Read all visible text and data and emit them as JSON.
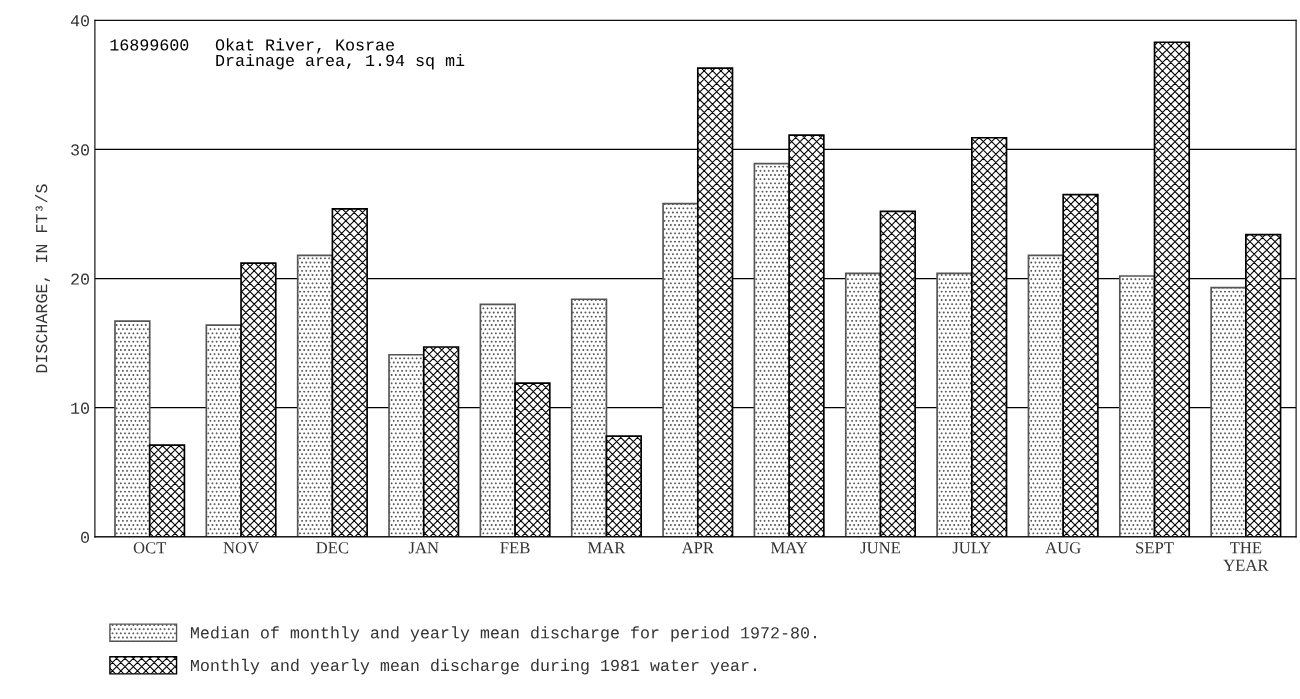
{
  "chart_data": {
    "type": "bar",
    "ylabel": "DISCHARGE, IN FT³/S",
    "categories": [
      "OCT",
      "NOV",
      "DEC",
      "JAN",
      "FEB",
      "MAR",
      "APR",
      "MAY",
      "JUNE",
      "JULY",
      "AUG",
      "SEPT",
      "THE\nYEAR"
    ],
    "series": [
      {
        "name": "Median of monthly and yearly mean discharge for period 1972-80.",
        "color": "#555555",
        "values": [
          16.7,
          16.4,
          21.8,
          14.1,
          18.0,
          18.4,
          25.8,
          28.9,
          20.4,
          20.4,
          21.8,
          20.2,
          19.3
        ]
      },
      {
        "name": "Monthly and yearly mean discharge during 1981 water year.",
        "color": "#000000",
        "values": [
          7.1,
          21.2,
          25.4,
          14.7,
          11.9,
          7.8,
          36.3,
          31.1,
          25.2,
          30.9,
          26.5,
          38.3,
          23.4
        ]
      }
    ],
    "ylim": [
      0,
      40
    ],
    "yticks": [
      0,
      10,
      20,
      30,
      40
    ],
    "grid": "y",
    "legend": "bottom",
    "annotations": [
      "16899600",
      "Okat River, Kosrae\nDrainage area, 1.94 sq mi"
    ]
  }
}
